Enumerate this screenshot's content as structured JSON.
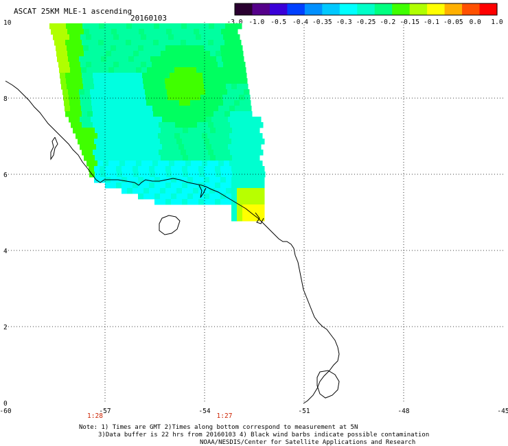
{
  "header": {
    "product": "ASCAT 25KM MLE-1 ascending",
    "date": "20160103"
  },
  "colorbar": {
    "colors": [
      "#2a0030",
      "#55008a",
      "#3a00d8",
      "#0040ff",
      "#0090ff",
      "#00c8ff",
      "#00ffff",
      "#00ffc8",
      "#00ff80",
      "#40ff00",
      "#b0ff00",
      "#ffff00",
      "#ffb000",
      "#ff5000",
      "#ff0000"
    ],
    "tick_labels": [
      "-3.0",
      "-1.0",
      "-0.5",
      "-0.4",
      "-0.35",
      "-0.3",
      "-0.25",
      "-0.2",
      "-0.15",
      "-0.1",
      "-0.05",
      "0.0",
      "1.0"
    ]
  },
  "map": {
    "lon_labels": [
      "-60",
      "-57",
      "-54",
      "-51",
      "-48",
      "-45"
    ],
    "lat_labels": [
      "0",
      "2",
      "4",
      "6",
      "8",
      "10"
    ],
    "time_labels": [
      {
        "text": "1:28",
        "lon": -57.3
      },
      {
        "text": "1:27",
        "lon": -53.4
      }
    ]
  },
  "notes": {
    "line1": "Note: 1) Times are GMT 2)Times along bottom correspond to measurement at 5N",
    "line2": "3)Data buffer is 22 hrs from 20160103 4) Black wind barbs indicate possible contamination",
    "line3": "NOAA/NESDIS/Center for Satellite Applications and Research"
  }
}
